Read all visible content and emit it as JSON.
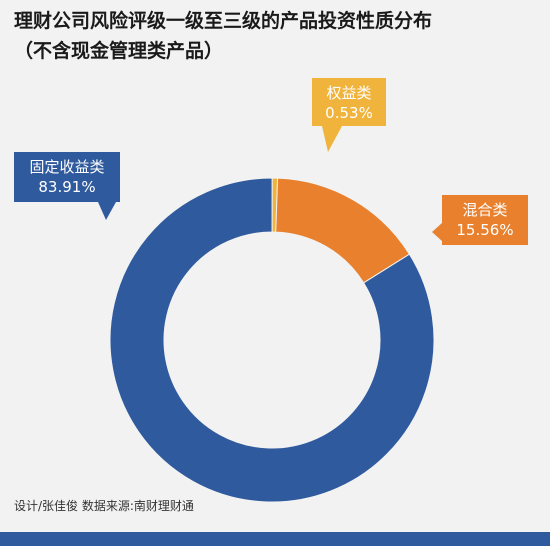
{
  "title_line1": "理财公司风险评级一级至三级的产品投资性质分布",
  "title_line2": "（不含现金管理类产品）",
  "credit": "设计/张佳俊   数据来源:南财理财通",
  "chart_data": {
    "type": "pie",
    "donut": true,
    "unit": "%",
    "slices": [
      {
        "label": "固定收益类",
        "value": 83.91,
        "display": "83.91%",
        "color": "#2f5a9e"
      },
      {
        "label": "权益类",
        "value": 0.53,
        "display": "0.53%",
        "color": "#f0b33c"
      },
      {
        "label": "混合类",
        "value": 15.56,
        "display": "15.56%",
        "color": "#e8802e"
      }
    ]
  }
}
